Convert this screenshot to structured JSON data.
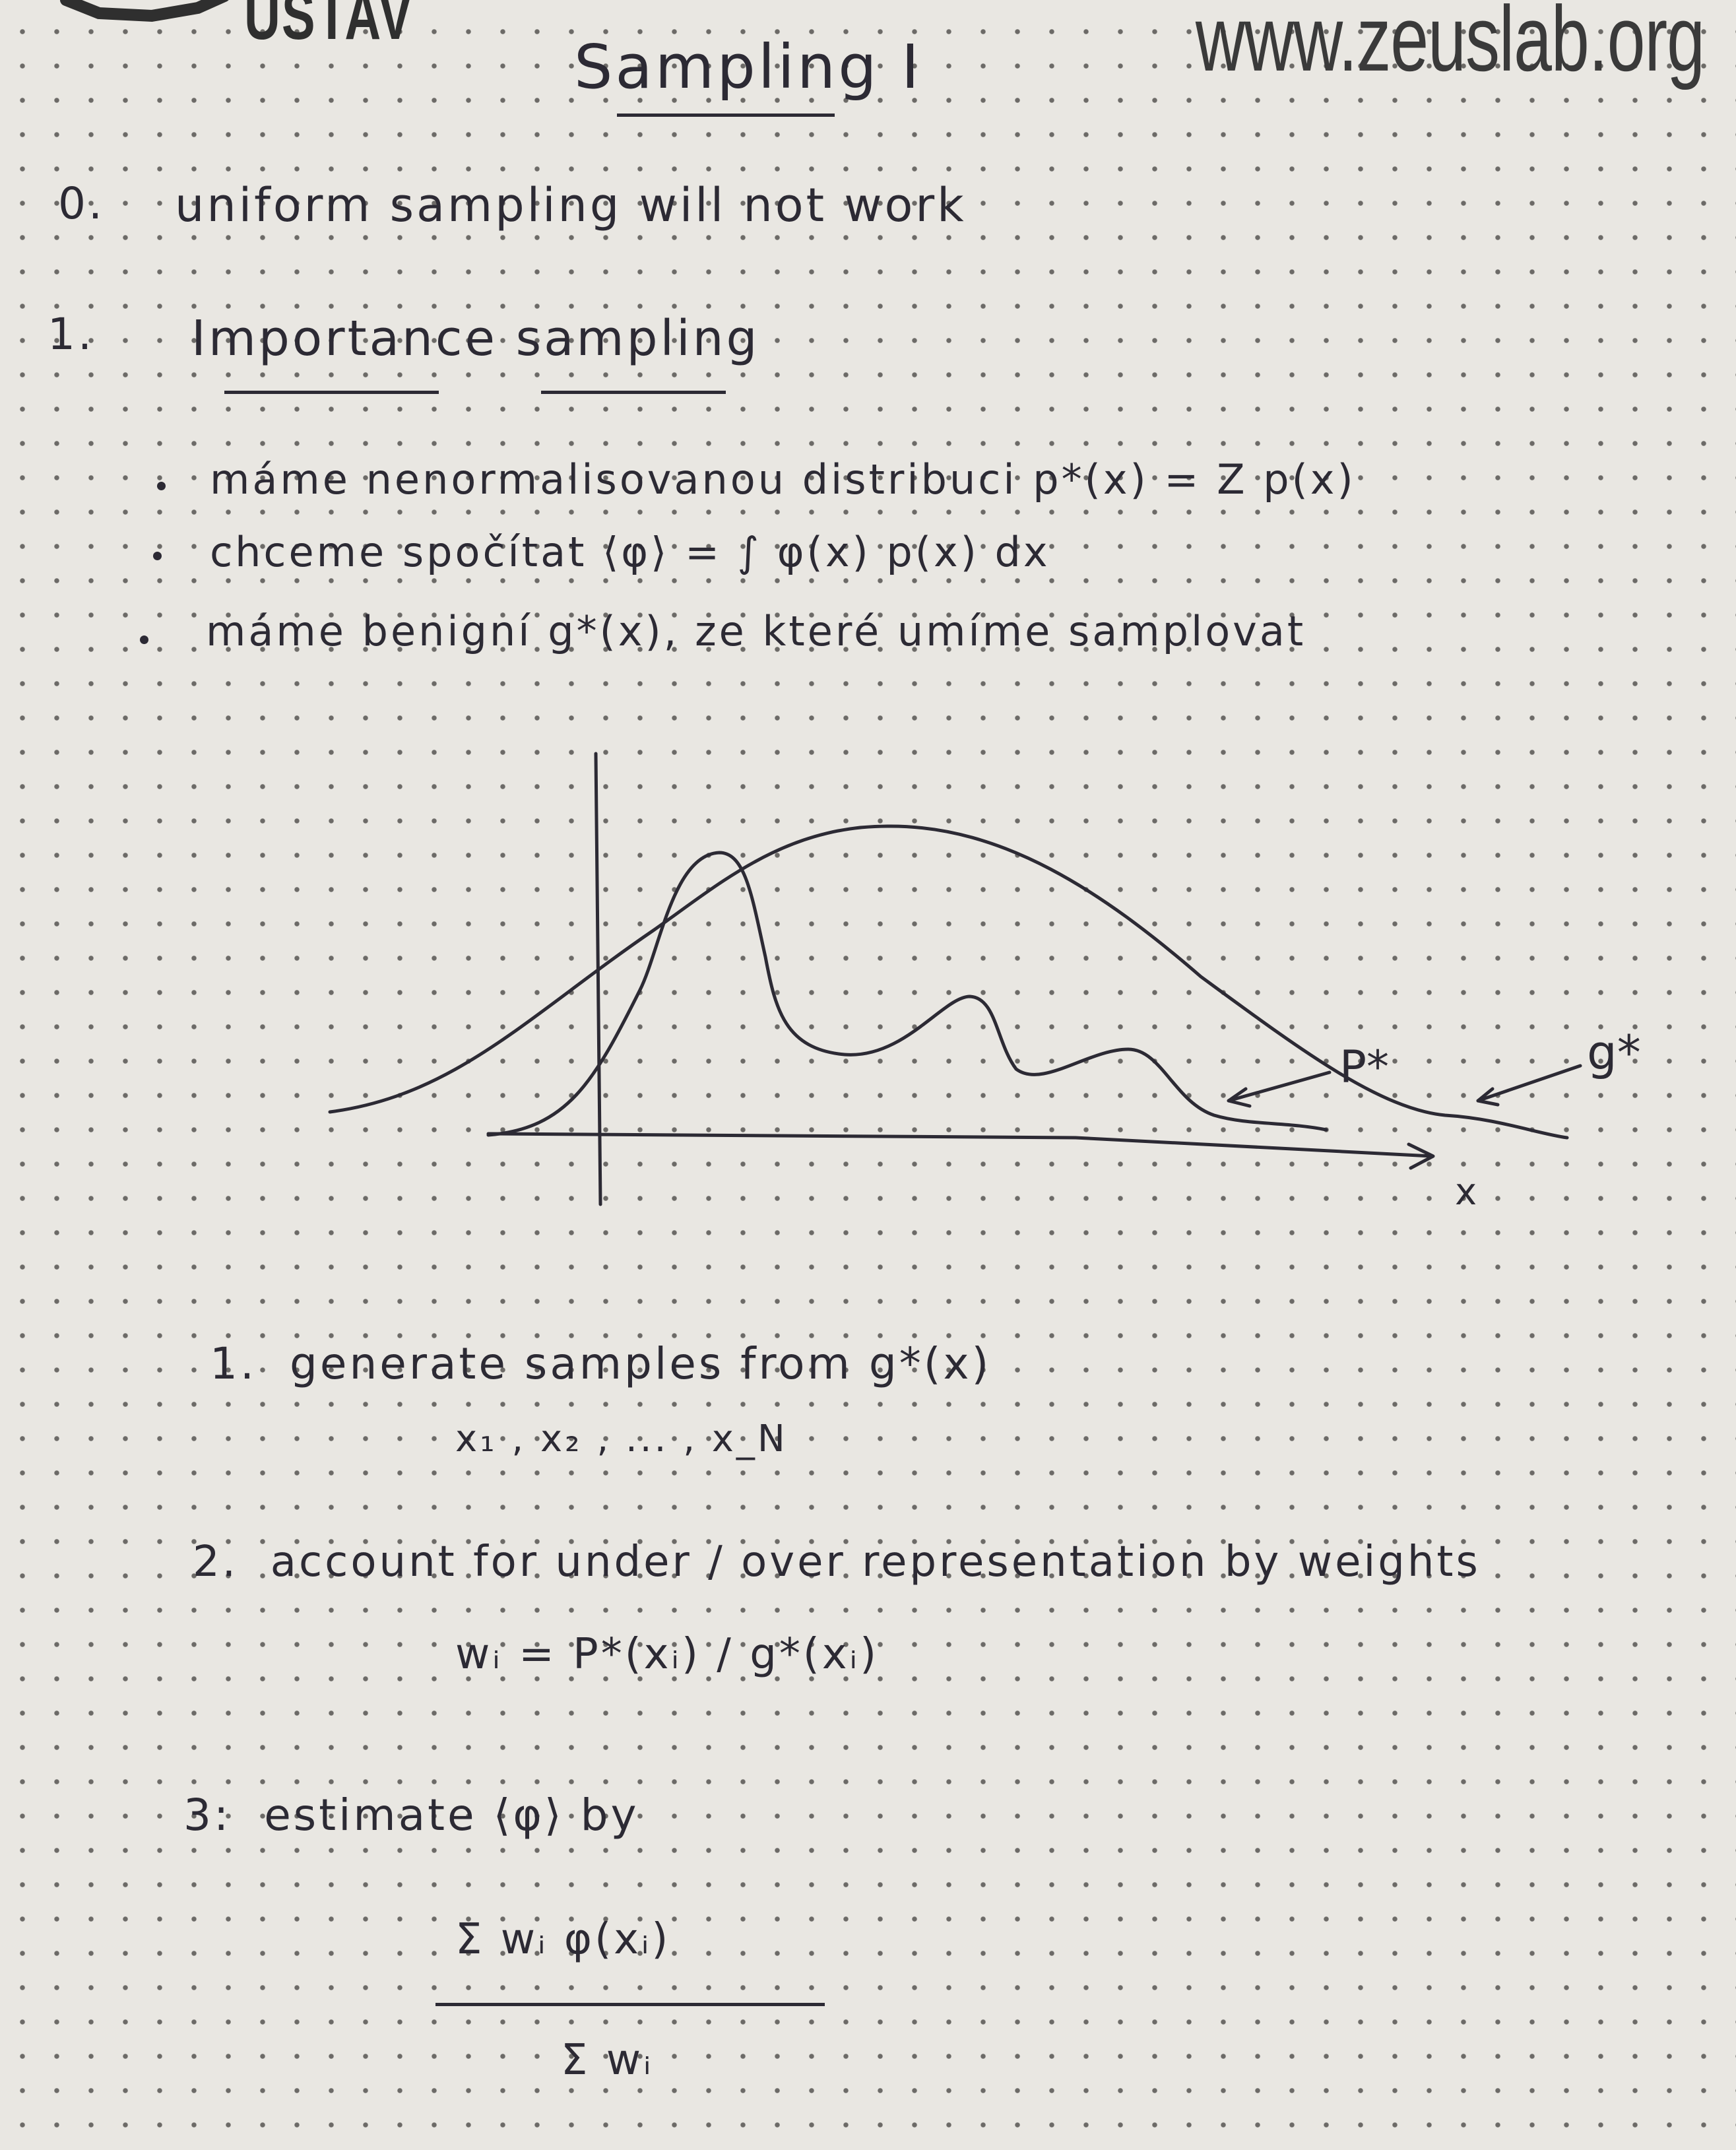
{
  "header": {
    "logo_text": "ÚSTAV",
    "site_url": "www.zeuslab.org"
  },
  "notes": {
    "title": "Sampling I",
    "section_0": {
      "number": "0.",
      "text": "uniform sampling will not work"
    },
    "section_1": {
      "number": "1.",
      "title": "Importance sampling",
      "bullets": [
        "máme nenormalisovanou distribuci  p*(x) = Z p(x)",
        "chceme spočítat  ⟨φ⟩ = ∫ φ(x) p(x) dx",
        "máme benigní  g*(x),  ze které umíme samplovat"
      ]
    },
    "figure": {
      "label_p": "P*",
      "label_g": "g*",
      "label_x": "x"
    },
    "steps": [
      {
        "number": "1.",
        "text": "generate samples from  g*(x)",
        "sub": "x₁ , x₂ , ... , x_N"
      },
      {
        "number": "2.",
        "text": "account for under / over representation by weights",
        "formula": "wᵢ  =  P*(xᵢ) / g*(xᵢ)"
      },
      {
        "number": "3:",
        "text": "estimate  ⟨φ⟩  by",
        "numerator": "Σ wᵢ φ(xᵢ)",
        "denominator": "Σ wᵢ"
      }
    ]
  }
}
